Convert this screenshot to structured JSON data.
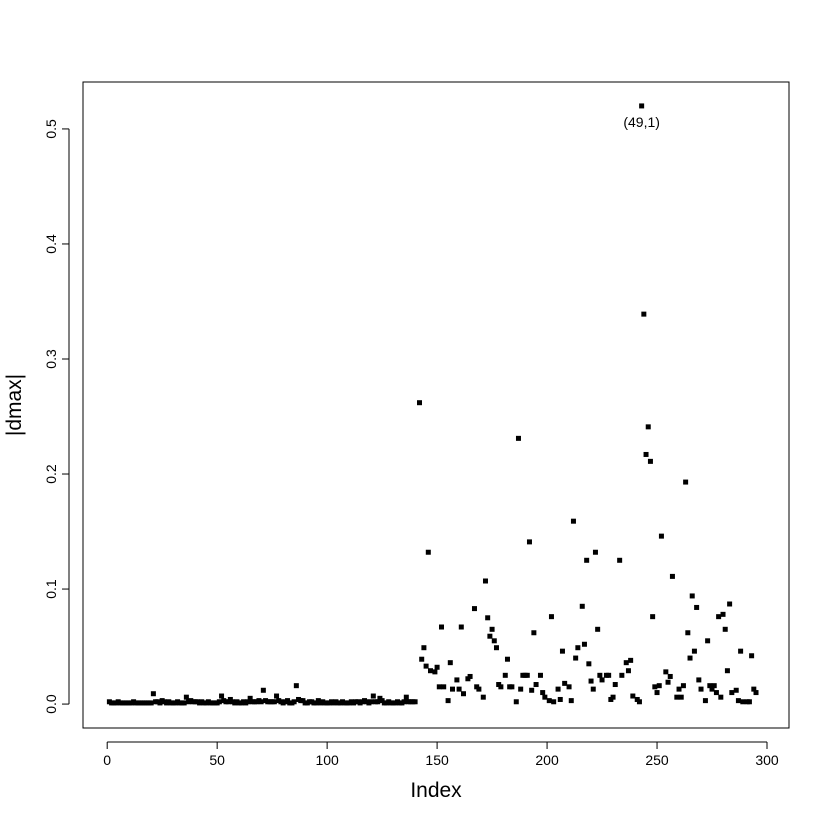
{
  "chart_data": {
    "type": "scatter",
    "x_label": "Index",
    "y_label": "|dmax|",
    "annotations": [
      "(49,1)"
    ],
    "color": "#000000",
    "xlim": [
      -11,
      310
    ],
    "ylim": [
      -0.0208,
      0.5408
    ],
    "xticks": [
      0,
      50,
      100,
      150,
      200,
      250,
      300
    ],
    "yticks": [
      {
        "value": 0,
        "label": "0.0"
      },
      0.1,
      0.2,
      0.3,
      0.4,
      0.5
    ],
    "x": [
      1,
      2,
      3,
      4,
      5,
      6,
      7,
      8,
      9,
      10,
      11,
      12,
      13,
      14,
      15,
      16,
      17,
      18,
      19,
      20,
      21,
      22,
      23,
      24,
      25,
      26,
      27,
      28,
      29,
      30,
      31,
      32,
      33,
      34,
      35,
      36,
      37,
      38,
      39,
      40,
      41,
      42,
      43,
      44,
      45,
      46,
      47,
      48,
      49,
      50,
      51,
      52,
      53,
      54,
      55,
      56,
      57,
      58,
      59,
      60,
      61,
      62,
      63,
      64,
      65,
      66,
      67,
      68,
      69,
      70,
      71,
      72,
      73,
      74,
      75,
      76,
      77,
      78,
      79,
      80,
      81,
      82,
      83,
      84,
      85,
      86,
      87,
      88,
      89,
      90,
      91,
      92,
      93,
      94,
      95,
      96,
      97,
      98,
      99,
      100,
      101,
      102,
      103,
      104,
      105,
      106,
      107,
      108,
      109,
      110,
      111,
      112,
      113,
      114,
      115,
      116,
      117,
      118,
      119,
      120,
      121,
      122,
      123,
      124,
      125,
      126,
      127,
      128,
      129,
      130,
      131,
      132,
      133,
      134,
      135,
      136,
      137,
      138,
      139,
      140,
      142,
      143,
      144,
      145,
      146,
      147,
      149,
      150,
      151,
      152,
      153,
      155,
      156,
      157,
      159,
      160,
      161,
      162,
      164,
      165,
      167,
      168,
      169,
      171,
      172,
      173,
      174,
      175,
      176,
      177,
      178,
      179,
      181,
      182,
      183,
      184,
      186,
      187,
      188,
      189,
      190,
      191,
      192,
      193,
      194,
      195,
      197,
      198,
      199,
      201,
      202,
      203,
      205,
      206,
      207,
      208,
      210,
      211,
      212,
      213,
      214,
      216,
      217,
      218,
      219,
      220,
      221,
      222,
      223,
      224,
      225,
      227,
      228,
      229,
      230,
      231,
      233,
      234,
      236,
      237,
      238,
      239,
      241,
      242,
      243,
      244,
      245,
      246,
      247,
      248,
      249,
      250,
      251,
      252,
      254,
      255,
      256,
      257,
      259,
      260,
      261,
      262,
      263,
      264,
      265,
      266,
      267,
      268,
      269,
      270,
      272,
      273,
      274,
      275,
      276,
      277,
      278,
      279,
      280,
      281,
      282,
      283,
      284,
      286,
      287,
      288,
      289,
      291,
      292,
      293,
      294,
      295
    ],
    "values": [
      0.002,
      0.001,
      0.001,
      0.001,
      0.002,
      0.001,
      0.001,
      0.001,
      0.001,
      0.001,
      0.001,
      0.002,
      0.001,
      0.001,
      0.001,
      0.001,
      0.001,
      0.001,
      0.001,
      0.001,
      0.009,
      0.002,
      0.002,
      0.001,
      0.003,
      0.002,
      0.001,
      0.002,
      0.001,
      0.001,
      0.001,
      0.002,
      0.001,
      0.001,
      0.001,
      0.006,
      0.002,
      0.003,
      0.002,
      0.002,
      0.002,
      0.001,
      0.002,
      0.001,
      0.001,
      0.002,
      0.001,
      0.001,
      0.001,
      0.001,
      0.002,
      0.007,
      0.003,
      0.002,
      0.002,
      0.004,
      0.002,
      0.001,
      0.002,
      0.001,
      0.001,
      0.002,
      0.001,
      0.002,
      0.005,
      0.002,
      0.002,
      0.002,
      0.003,
      0.002,
      0.012,
      0.003,
      0.002,
      0.002,
      0.002,
      0.002,
      0.007,
      0.003,
      0.002,
      0.001,
      0.002,
      0.003,
      0.001,
      0.001,
      0.002,
      0.016,
      0.004,
      0.003,
      0.003,
      0.001,
      0.001,
      0.002,
      0.002,
      0.001,
      0.001,
      0.003,
      0.001,
      0.002,
      0.001,
      0.001,
      0.001,
      0.002,
      0.001,
      0.002,
      0.001,
      0.001,
      0.002,
      0.001,
      0.001,
      0.001,
      0.002,
      0.001,
      0.002,
      0.002,
      0.001,
      0.002,
      0.003,
      0.002,
      0.001,
      0.002,
      0.007,
      0.002,
      0.002,
      0.005,
      0.003,
      0.001,
      0.001,
      0.002,
      0.001,
      0.001,
      0.001,
      0.002,
      0.001,
      0.001,
      0.002,
      0.006,
      0.002,
      0.002,
      0.002,
      0.002,
      0.262,
      0.039,
      0.049,
      0.033,
      0.132,
      0.029,
      0.028,
      0.032,
      0.015,
      0.067,
      0.015,
      0.003,
      0.036,
      0.013,
      0.021,
      0.013,
      0.067,
      0.009,
      0.022,
      0.024,
      0.083,
      0.015,
      0.013,
      0.006,
      0.107,
      0.075,
      0.059,
      0.065,
      0.055,
      0.049,
      0.017,
      0.015,
      0.025,
      0.039,
      0.015,
      0.015,
      0.002,
      0.231,
      0.013,
      0.025,
      0.025,
      0.025,
      0.141,
      0.012,
      0.062,
      0.017,
      0.025,
      0.01,
      0.006,
      0.003,
      0.076,
      0.002,
      0.013,
      0.004,
      0.046,
      0.018,
      0.015,
      0.003,
      0.159,
      0.04,
      0.049,
      0.085,
      0.052,
      0.125,
      0.035,
      0.02,
      0.013,
      0.132,
      0.065,
      0.025,
      0.021,
      0.025,
      0.025,
      0.004,
      0.006,
      0.017,
      0.125,
      0.025,
      0.036,
      0.029,
      0.038,
      0.007,
      0.004,
      0.002,
      0.52,
      0.339,
      0.217,
      0.241,
      0.211,
      0.076,
      0.015,
      0.01,
      0.016,
      0.146,
      0.028,
      0.019,
      0.024,
      0.111,
      0.006,
      0.013,
      0.006,
      0.016,
      0.193,
      0.062,
      0.04,
      0.094,
      0.046,
      0.084,
      0.021,
      0.013,
      0.003,
      0.055,
      0.016,
      0.013,
      0.016,
      0.01,
      0.076,
      0.006,
      0.078,
      0.065,
      0.029,
      0.087,
      0.01,
      0.012,
      0.003,
      0.046,
      0.002,
      0.002,
      0.002,
      0.042,
      0.013,
      0.01
    ]
  }
}
